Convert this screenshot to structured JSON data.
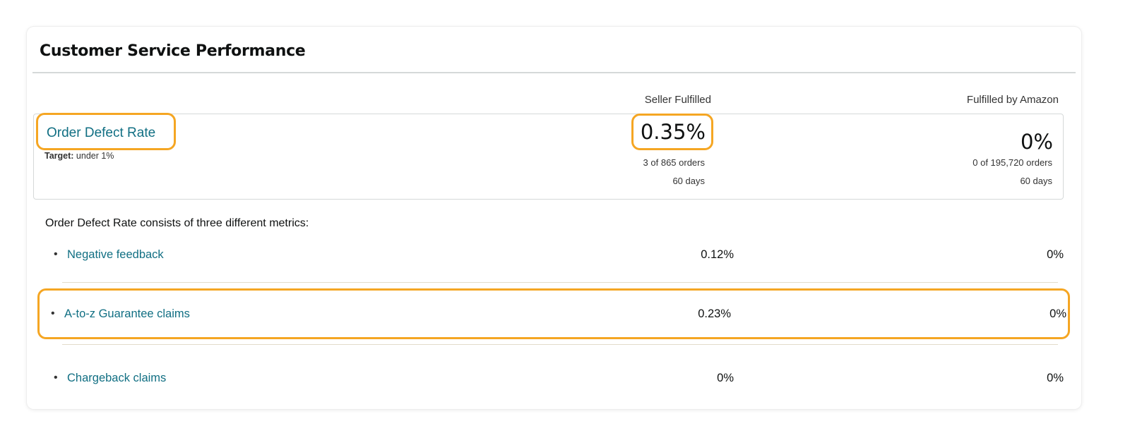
{
  "title": "Customer Service Performance",
  "columns": {
    "seller_fulfilled": "Seller Fulfilled",
    "fba": "Fulfilled by Amazon"
  },
  "odr": {
    "label": "Order Defect Rate",
    "target_label": "Target:",
    "target_value": " under 1%",
    "seller_fulfilled": {
      "rate": "0.35%",
      "orders": "3 of 865 orders",
      "period": "60 days"
    },
    "fba": {
      "rate": "0%",
      "orders": "0 of 195,720 orders",
      "period": "60 days"
    }
  },
  "intro_text": "Order Defect Rate consists of three different metrics:",
  "metrics": [
    {
      "label": "Negative feedback",
      "seller_fulfilled": "0.12%",
      "fba": "0%"
    },
    {
      "label": "A-to-z Guarantee claims",
      "seller_fulfilled": "0.23%",
      "fba": "0%"
    },
    {
      "label": "Chargeback claims",
      "seller_fulfilled": "0%",
      "fba": "0%"
    }
  ],
  "bullet": "•",
  "colors": {
    "link": "#116f83",
    "highlight": "#f5a623",
    "divider": "#d5d9d9"
  }
}
